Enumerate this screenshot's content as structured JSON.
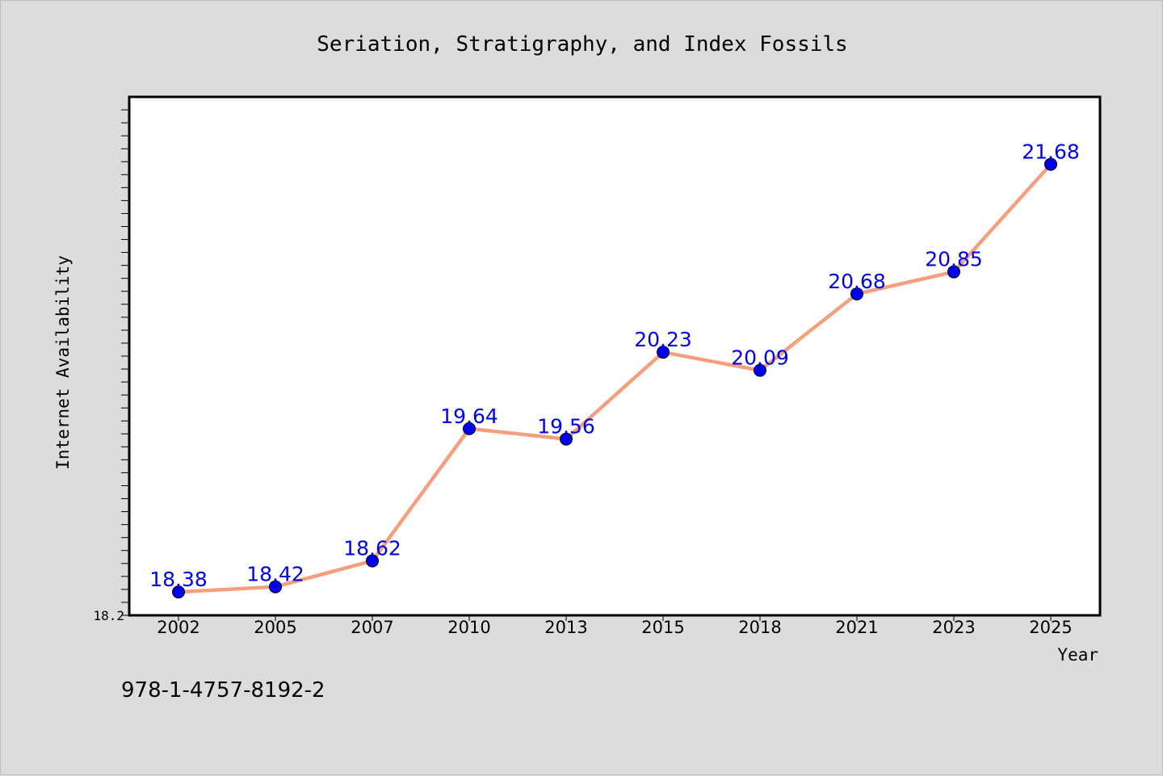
{
  "chart_data": {
    "type": "line",
    "title": "Seriation, Stratigraphy, and Index Fossils",
    "xlabel": "Year",
    "ylabel": "Internet Availability",
    "categories": [
      "2002",
      "2005",
      "2007",
      "2010",
      "2013",
      "2015",
      "2018",
      "2021",
      "2023",
      "2025"
    ],
    "series": [
      {
        "values": [
          18.38,
          18.42,
          18.62,
          19.64,
          19.56,
          20.23,
          20.09,
          20.68,
          20.85,
          21.68
        ]
      }
    ],
    "data_labels": [
      "18.38",
      "18.42",
      "18.62",
      "19.64",
      "19.56",
      "20.23",
      "20.09",
      "20.68",
      "20.85",
      "21.68"
    ],
    "ylim": [
      18.2,
      22.2
    ],
    "yticks_labeled": [
      "18.2"
    ],
    "grid": false,
    "legend": "none",
    "colors": {
      "line": "#f4a07e",
      "marker": "#0000ee",
      "data_label": "#0000ee",
      "plot_background": "#ffffff",
      "figure_background": "#dcdcdc"
    }
  },
  "footer": {
    "isbn": "978-1-4757-8192-2"
  }
}
